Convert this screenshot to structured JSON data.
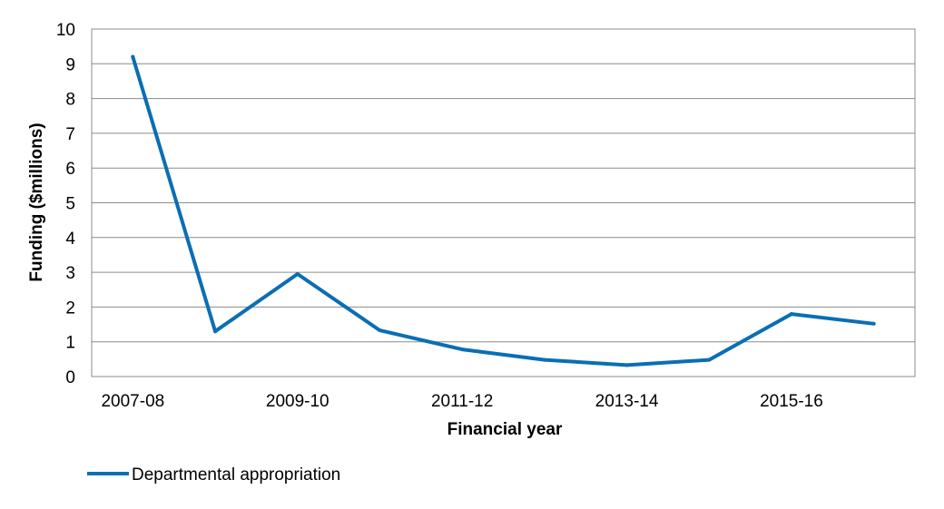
{
  "chart_data": {
    "type": "line",
    "xlabel": "Financial year",
    "ylabel": "Funding ($millions)",
    "ylim": [
      0,
      10
    ],
    "yticks": [
      0,
      1,
      2,
      3,
      4,
      5,
      6,
      7,
      8,
      9,
      10
    ],
    "categories": [
      "2007-08",
      "2008-09",
      "2009-10",
      "2010-11",
      "2011-12",
      "2012-13",
      "2013-14",
      "2014-15",
      "2015-16",
      "2016-17"
    ],
    "x_tick_labels_shown": [
      "2007-08",
      "2009-10",
      "2011-12",
      "2013-14",
      "2015-16"
    ],
    "grid": "horizontal",
    "legend_position": "bottom-left",
    "series": [
      {
        "name": "Departmental appropriation",
        "color": "#0A6EB4",
        "values": [
          9.2,
          1.3,
          2.95,
          1.33,
          0.78,
          0.48,
          0.33,
          0.48,
          1.8,
          1.52
        ]
      }
    ]
  }
}
